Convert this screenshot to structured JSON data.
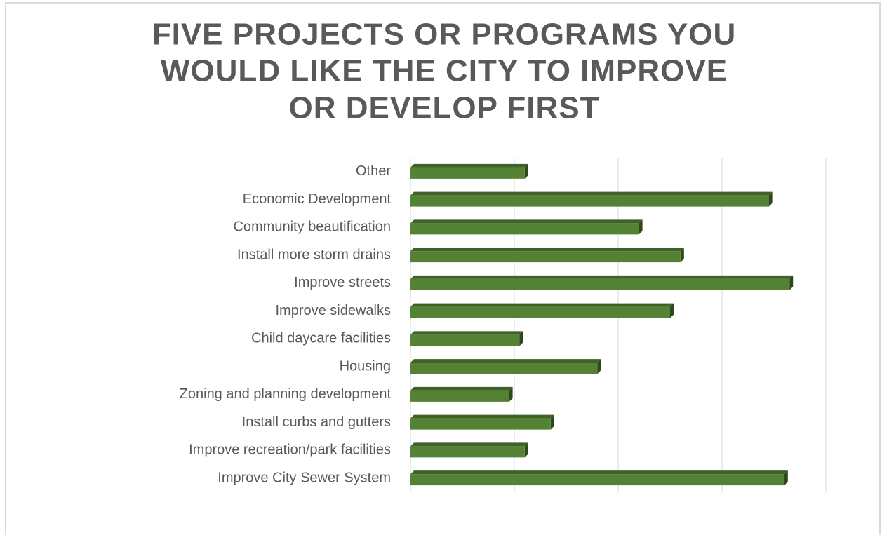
{
  "chart_data": {
    "type": "barh",
    "title": [
      "FIVE PROJECTS OR PROGRAMS YOU",
      "WOULD LIKE THE CITY TO IMPROVE",
      "OR DEVELOP FIRST"
    ],
    "categories": [
      "Other",
      "Economic Development",
      "Community beautification",
      "Install more storm drains",
      "Improve streets",
      "Improve sidewalks",
      "Child daycare facilities",
      "Housing",
      "Zoning and planning development",
      "Install curbs and gutters",
      "Improve recreation/park facilities",
      "Improve City Sewer System"
    ],
    "values": [
      11,
      34.5,
      22,
      26,
      36.5,
      25,
      10.5,
      18,
      9.5,
      13.5,
      11,
      36
    ],
    "color": "#548235",
    "xlim": [
      0,
      40
    ],
    "xticks": [
      0,
      10,
      20,
      30,
      40
    ],
    "grid": true
  }
}
